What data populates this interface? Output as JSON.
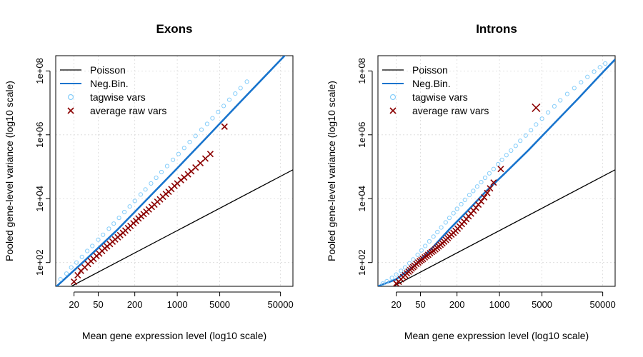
{
  "chart_data": [
    {
      "type": "scatter",
      "title": "Exons",
      "xlabel": "Mean gene expression level (log10 scale)",
      "ylabel": "Pooled gene-level variance (log10 scale)",
      "x_scale": "log10",
      "y_scale": "log10",
      "xlim": [
        10,
        80000
      ],
      "ylim": [
        18,
        300000000
      ],
      "x_ticks": [
        20,
        50,
        200,
        1000,
        5000,
        50000
      ],
      "x_tick_labels": [
        "20",
        "50",
        "200",
        "1000",
        "5000",
        "50000"
      ],
      "y_ticks": [
        100,
        10000,
        1000000,
        100000000
      ],
      "y_tick_labels": [
        "1e+02",
        "1e+04",
        "1e+06",
        "1e+08"
      ],
      "grid": true,
      "legend_position": "top-left",
      "legend": [
        "Poisson",
        "Neg.Bin.",
        "tagwise vars",
        "average raw vars"
      ],
      "colors": {
        "poisson": "#000000",
        "negbin": "#1874CD",
        "tagwise": "#87CEFA",
        "average_raw": "#8B0000"
      },
      "series": [
        {
          "name": "Poisson",
          "kind": "line",
          "x": [
            10,
            80000
          ],
          "y": [
            10,
            80000
          ]
        },
        {
          "name": "Neg.Bin.",
          "kind": "line",
          "x": [
            10,
            30,
            100,
            300,
            1000,
            3000,
            10000,
            30000,
            80000
          ],
          "y": [
            17,
            115,
            1000,
            8500,
            90000,
            800000,
            9000000,
            80000000,
            560000000
          ]
        },
        {
          "name": "tagwise vars",
          "kind": "points",
          "x": [
            12,
            15,
            18,
            22,
            27,
            33,
            40,
            50,
            60,
            75,
            90,
            110,
            135,
            165,
            200,
            250,
            300,
            370,
            450,
            550,
            680,
            850,
            1050,
            1300,
            1600,
            2000,
            2500,
            3100,
            3800,
            4700,
            5800,
            7200,
            9000,
            11000,
            14000
          ],
          "y": [
            30,
            45,
            70,
            100,
            150,
            230,
            330,
            520,
            740,
            1150,
            1650,
            2500,
            3800,
            5700,
            8500,
            13500,
            19500,
            30000,
            45000,
            68000,
            105000,
            165000,
            250000,
            385000,
            590000,
            920000,
            1450000,
            2200000,
            3300000,
            5200000,
            8000000,
            12500000,
            19500000,
            29000000,
            46000000
          ]
        },
        {
          "name": "average raw vars",
          "kind": "points",
          "x": [
            20,
            23,
            26,
            30,
            34,
            38,
            42,
            47,
            52,
            58,
            64,
            70,
            78,
            86,
            95,
            105,
            115,
            128,
            140,
            155,
            170,
            190,
            210,
            230,
            255,
            280,
            310,
            340,
            380,
            420,
            470,
            520,
            580,
            650,
            720,
            800,
            900,
            1000,
            1150,
            1300,
            1500,
            1700,
            2000,
            2400,
            2900,
            3500,
            6000
          ],
          "y": [
            25,
            40,
            55,
            70,
            90,
            110,
            130,
            160,
            190,
            230,
            280,
            320,
            380,
            450,
            530,
            620,
            720,
            850,
            1000,
            1200,
            1400,
            1700,
            2000,
            2400,
            2800,
            3300,
            3900,
            4600,
            5500,
            6500,
            8000,
            9500,
            11500,
            14000,
            16500,
            20000,
            25000,
            30000,
            38000,
            46000,
            58000,
            72000,
            95000,
            130000,
            180000,
            250000,
            1800000
          ]
        }
      ]
    },
    {
      "type": "scatter",
      "title": "Introns",
      "xlabel": "Mean gene expression level (log10 scale)",
      "ylabel": "Pooled gene-level variance (log10 scale)",
      "x_scale": "log10",
      "y_scale": "log10",
      "xlim": [
        10,
        80000
      ],
      "ylim": [
        18,
        300000000
      ],
      "x_ticks": [
        20,
        50,
        200,
        1000,
        5000,
        50000
      ],
      "x_tick_labels": [
        "20",
        "50",
        "200",
        "1000",
        "5000",
        "50000"
      ],
      "y_ticks": [
        100,
        10000,
        1000000,
        100000000
      ],
      "y_tick_labels": [
        "1e+02",
        "1e+04",
        "1e+06",
        "1e+08"
      ],
      "grid": true,
      "legend_position": "top-left",
      "legend": [
        "Poisson",
        "Neg.Bin.",
        "tagwise vars",
        "average raw vars"
      ],
      "colors": {
        "poisson": "#000000",
        "negbin": "#1874CD",
        "tagwise": "#87CEFA",
        "average_raw": "#8B0000"
      },
      "series": [
        {
          "name": "Poisson",
          "kind": "line",
          "x": [
            10,
            80000
          ],
          "y": [
            10,
            80000
          ]
        },
        {
          "name": "Neg.Bin.",
          "kind": "line",
          "x": [
            10,
            20,
            40,
            80,
            150,
            300,
            600,
            1200,
            3000,
            8000,
            20000,
            50000,
            80000
          ],
          "y": [
            18,
            30,
            80,
            300,
            1100,
            4200,
            17000,
            60000,
            330000,
            2300000,
            14000000,
            90000000,
            230000000
          ]
        },
        {
          "name": "tagwise vars",
          "kind": "points",
          "x": [
            12,
            14,
            17,
            20,
            24,
            28,
            33,
            38,
            45,
            52,
            60,
            70,
            82,
            95,
            110,
            130,
            150,
            175,
            200,
            235,
            270,
            320,
            370,
            430,
            500,
            580,
            680,
            800,
            950,
            1100,
            1300,
            1550,
            1850,
            2200,
            2700,
            3300,
            4000,
            5000,
            6300,
            8000,
            10000,
            13000,
            17000,
            22000,
            28000,
            36000,
            45000,
            55000
          ],
          "y": [
            22,
            26,
            33,
            42,
            55,
            70,
            95,
            125,
            175,
            240,
            330,
            460,
            650,
            900,
            1250,
            1800,
            2500,
            3500,
            4800,
            6700,
            9200,
            13000,
            17500,
            24000,
            33000,
            45000,
            62000,
            85000,
            120000,
            165000,
            230000,
            320000,
            450000,
            650000,
            950000,
            1400000,
            2100000,
            3200000,
            5000000,
            7800000,
            12000000,
            19000000,
            29000000,
            44000000,
            65000000,
            95000000,
            130000000,
            170000000
          ]
        },
        {
          "name": "average raw vars",
          "kind": "points",
          "x": [
            20,
            22,
            24,
            26,
            28,
            30,
            32,
            34,
            36,
            38,
            40,
            43,
            46,
            49,
            52,
            55,
            59,
            63,
            67,
            72,
            77,
            82,
            88,
            94,
            100,
            107,
            115,
            123,
            132,
            141,
            150,
            162,
            175,
            190,
            205,
            222,
            240,
            262,
            285,
            310,
            340,
            375,
            410,
            450,
            500,
            560,
            630,
            700,
            800,
            1050,
            4000
          ],
          "y": [
            22,
            25,
            30,
            35,
            40,
            46,
            52,
            58,
            65,
            72,
            80,
            90,
            100,
            110,
            120,
            130,
            145,
            160,
            175,
            195,
            215,
            235,
            260,
            290,
            320,
            360,
            400,
            450,
            510,
            580,
            660,
            750,
            850,
            980,
            1150,
            1350,
            1600,
            1900,
            2300,
            2800,
            3400,
            4200,
            5200,
            6500,
            8200,
            11000,
            15000,
            21000,
            32000,
            85000,
            7000000
          ]
        }
      ]
    }
  ]
}
